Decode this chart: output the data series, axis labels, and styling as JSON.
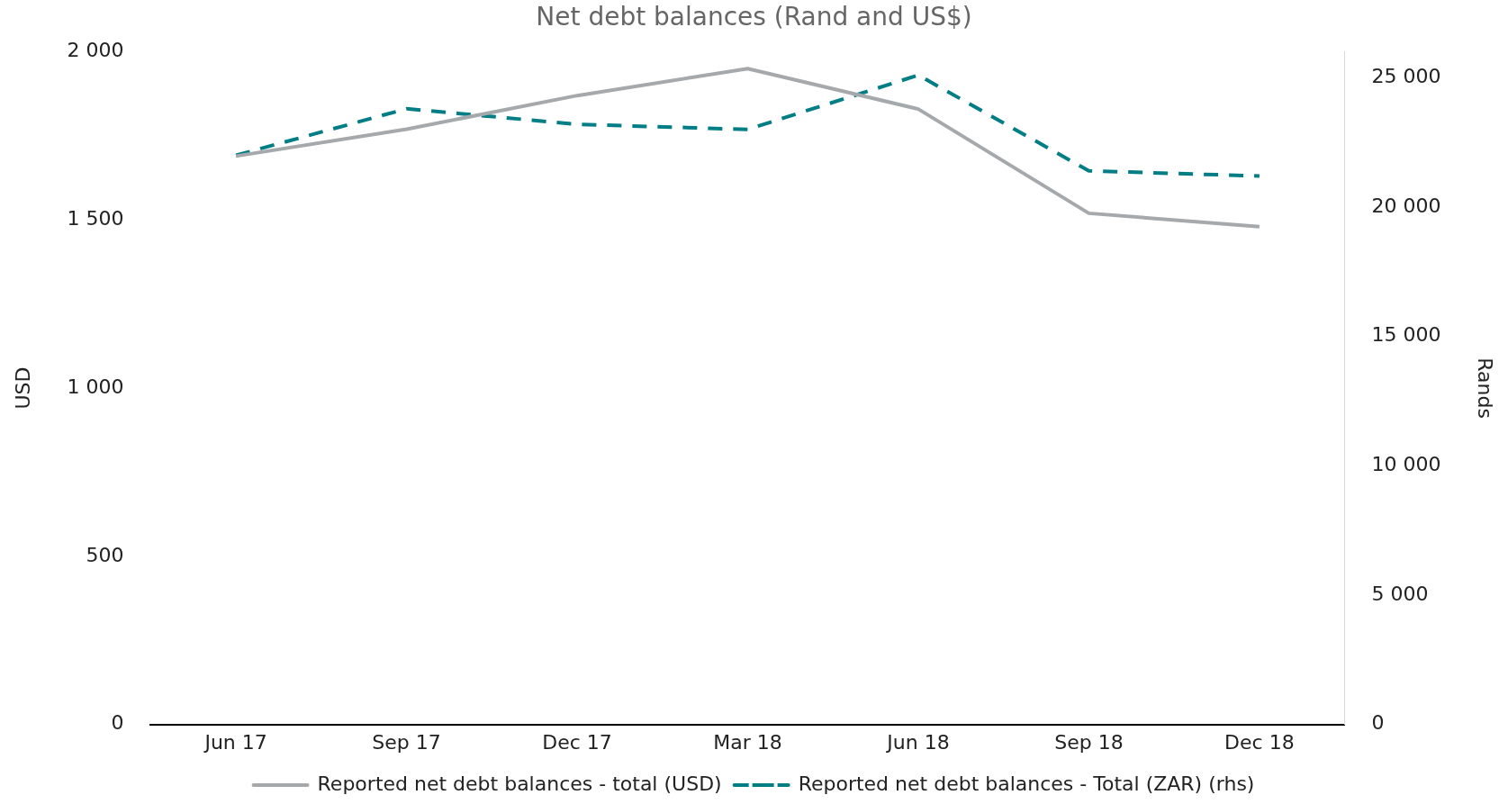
{
  "chart_data": {
    "type": "line",
    "title": "Net debt balances (Rand and US$)",
    "ylabel": "USD",
    "y2label": "Rands",
    "categories": [
      "Jun 17",
      "Sep 17",
      "Dec 17",
      "Mar 18",
      "Jun 18",
      "Sep 18",
      "Dec 18"
    ],
    "series": [
      {
        "name": "Reported net debt balances - total (USD)",
        "color": "#a5a9ac",
        "line_style": "solid",
        "values": [
          1690,
          1770,
          1870,
          1950,
          1830,
          1520,
          1480
        ]
      },
      {
        "name": "Reported net debt balances - Total (ZAR) (rhs)",
        "color": "#007d85",
        "line_style": "dashed",
        "axis": "y2",
        "values": [
          22000,
          23800,
          23200,
          23000,
          25100,
          21400,
          21200
        ]
      }
    ],
    "ylim": [
      0,
      2000
    ],
    "yticks": [
      0,
      500,
      {
        "value": 1000,
        "label": "1 000"
      },
      {
        "value": 1500,
        "label": "1 500"
      },
      {
        "value": 2000,
        "label": "2 000"
      }
    ],
    "y2lim": [
      0,
      26000
    ],
    "y2ticks": [
      0,
      {
        "value": 5000,
        "label": "5 000"
      },
      {
        "value": 10000,
        "label": "10 000"
      },
      {
        "value": 15000,
        "label": "15 000"
      },
      {
        "value": 20000,
        "label": "20 000"
      },
      {
        "value": 25000,
        "label": "25 000"
      }
    ],
    "grid": false,
    "legend": "bottom",
    "marker": "none"
  }
}
